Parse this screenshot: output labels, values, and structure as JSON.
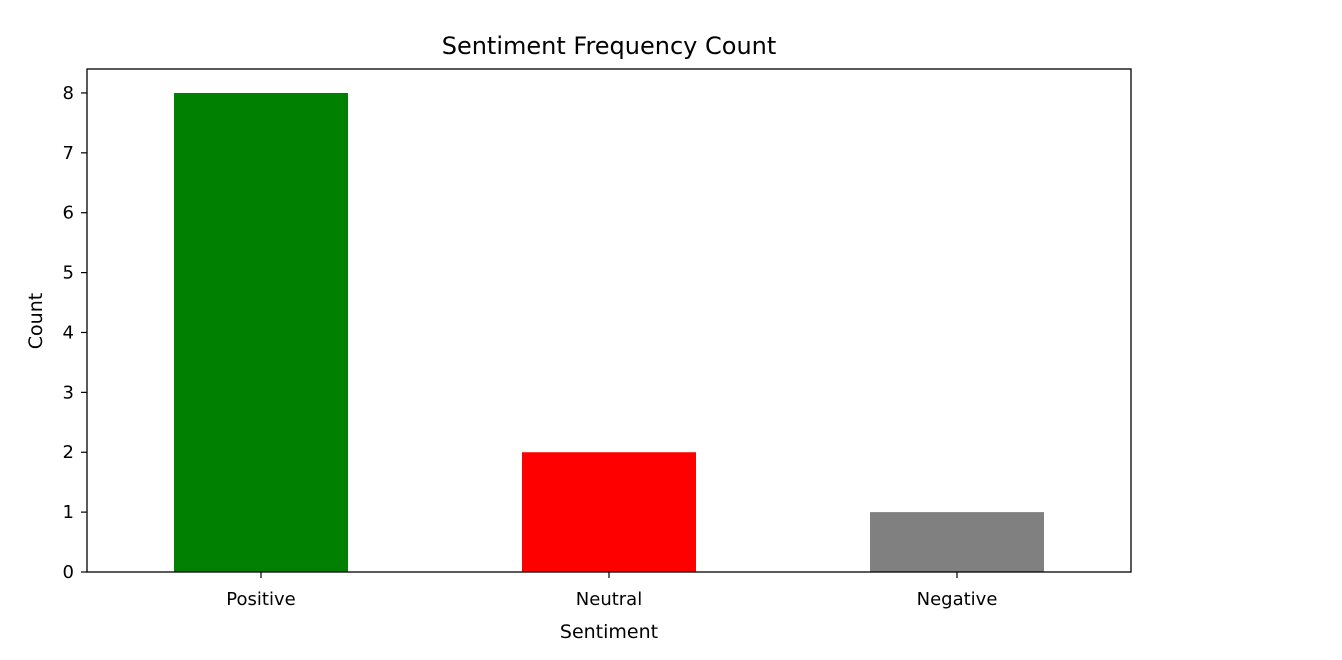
{
  "chart_data": {
    "type": "bar",
    "title": "Sentiment Frequency Count",
    "xlabel": "Sentiment",
    "ylabel": "Count",
    "categories": [
      "Positive",
      "Neutral",
      "Negative"
    ],
    "values": [
      8,
      2,
      1
    ],
    "colors": [
      "#008000",
      "#ff0000",
      "#808080"
    ],
    "ylim": [
      0,
      8.4
    ],
    "yticks": [
      0,
      1,
      2,
      3,
      4,
      5,
      6,
      7,
      8
    ],
    "ytick_labels": [
      "0",
      "1",
      "2",
      "3",
      "4",
      "5",
      "6",
      "7",
      "8"
    ],
    "grid": false,
    "legend": false
  }
}
